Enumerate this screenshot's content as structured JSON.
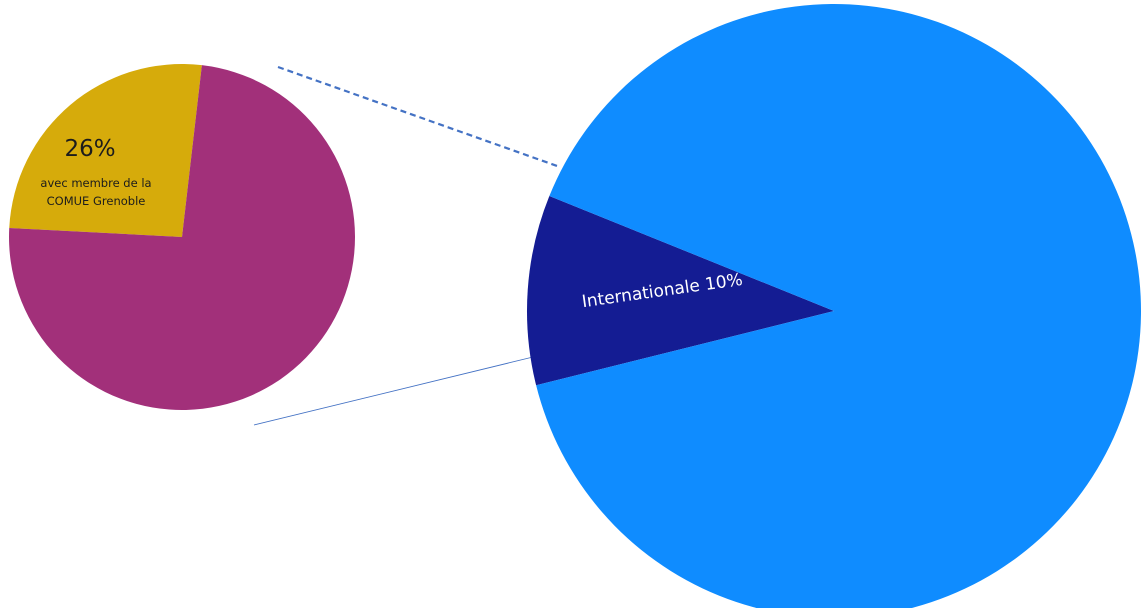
{
  "chart_data": [
    {
      "type": "pie",
      "slices": [
        {
          "label": "26%",
          "description_lines": [
            "avec membre de la",
            "COMUE Grenoble"
          ],
          "value": 26,
          "color": "#d6ab0b"
        },
        {
          "label": "",
          "value": 74,
          "color": "#a2307a"
        }
      ]
    },
    {
      "type": "pie",
      "slices": [
        {
          "label": "Internationale 10%",
          "value": 10,
          "color": "#141c93"
        },
        {
          "label": "",
          "value": 90,
          "color": "#0f8cff"
        }
      ]
    }
  ],
  "colors": {
    "connector": "#4472c4",
    "background": "#ffffff"
  }
}
